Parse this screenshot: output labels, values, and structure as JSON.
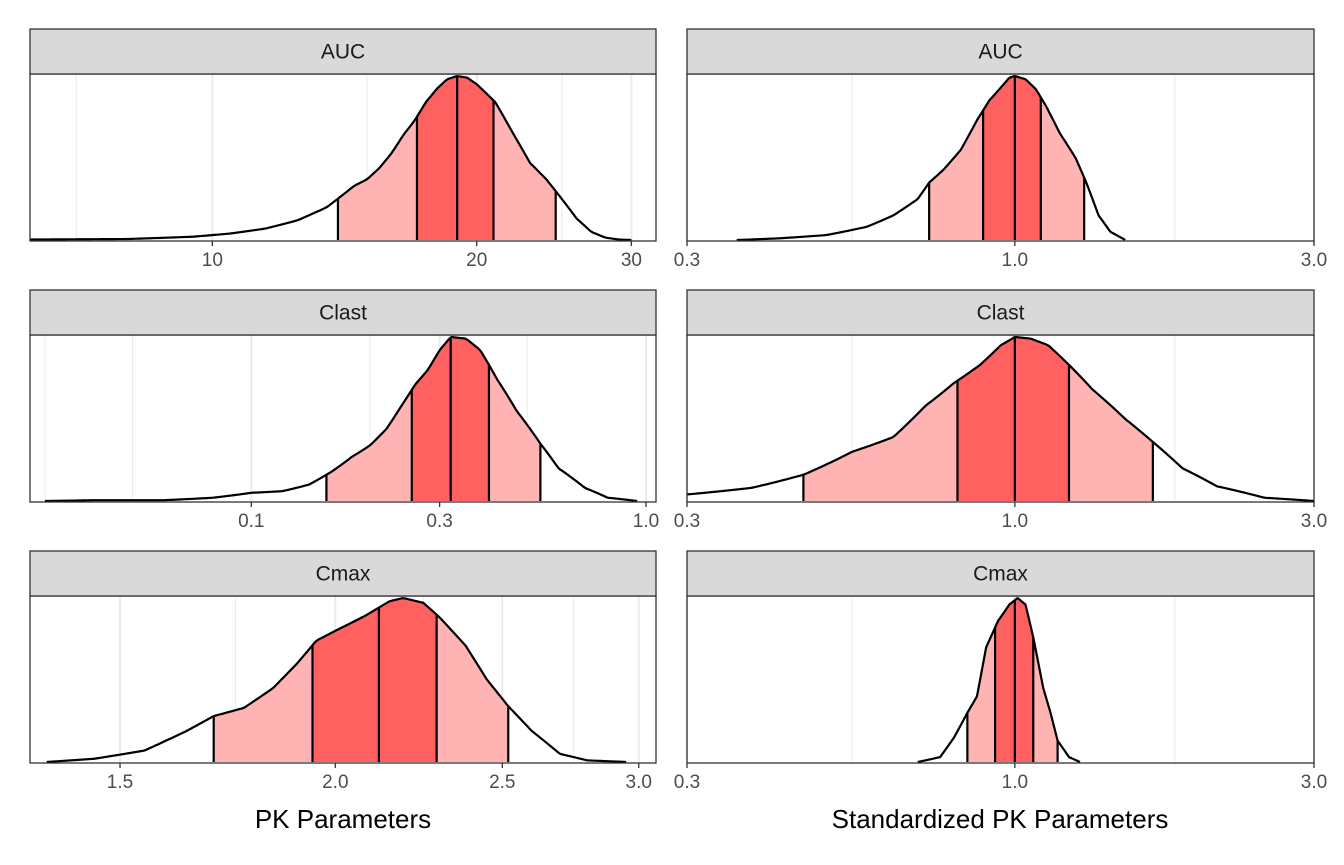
{
  "chart_data": {
    "type": "area",
    "description_style": "ridge density with central interval bands (light = 90%, mid = 50%, dark line = median)",
    "colors": {
      "outer_band": "#ffb3b3",
      "inner_band": "#ff6060",
      "strip_fill": "#d9d9d9",
      "grid": "#ebebeb",
      "line": "#000000"
    },
    "xlabels": {
      "left": "PK Parameters",
      "right": "Standardized PK Parameters"
    },
    "panels": [
      {
        "column": "left",
        "strip": "AUC",
        "scale": "log",
        "xlim": [
          6.2,
          32
        ],
        "ticks": [
          10,
          20,
          30
        ],
        "tick_labels": [
          "10",
          "20",
          "30"
        ],
        "minor_grid": [
          7,
          15,
          25
        ],
        "bands": [
          13.9,
          17.1,
          19.0,
          20.9,
          24.6
        ],
        "density": [
          [
            6.2,
            0.003
          ],
          [
            8,
            0.006
          ],
          [
            9.5,
            0.02
          ],
          [
            10.5,
            0.04
          ],
          [
            11.5,
            0.07
          ],
          [
            12.5,
            0.12
          ],
          [
            13.5,
            0.2
          ],
          [
            14.5,
            0.33
          ],
          [
            15,
            0.37
          ],
          [
            15.5,
            0.44
          ],
          [
            16,
            0.53
          ],
          [
            16.5,
            0.64
          ],
          [
            17,
            0.73
          ],
          [
            17.5,
            0.84
          ],
          [
            18,
            0.92
          ],
          [
            18.5,
            0.98
          ],
          [
            19,
            1.0
          ],
          [
            19.5,
            0.99
          ],
          [
            20,
            0.95
          ],
          [
            21,
            0.84
          ],
          [
            22,
            0.65
          ],
          [
            23,
            0.47
          ],
          [
            24,
            0.37
          ],
          [
            25,
            0.25
          ],
          [
            26,
            0.13
          ],
          [
            27,
            0.05
          ],
          [
            28,
            0.015
          ],
          [
            29,
            0.003
          ],
          [
            30,
            0.0
          ]
        ]
      },
      {
        "column": "right",
        "strip": "AUC",
        "scale": "log",
        "xlim": [
          0.3,
          3.0
        ],
        "ticks": [
          0.3,
          1.0,
          3.0
        ],
        "tick_labels": [
          "0.3",
          "1.0",
          "3.0"
        ],
        "minor_grid": [
          0.55,
          1.8
        ],
        "bands": [
          0.73,
          0.89,
          1.0,
          1.1,
          1.29
        ],
        "density": [
          [
            0.36,
            0.0
          ],
          [
            0.42,
            0.01
          ],
          [
            0.5,
            0.03
          ],
          [
            0.58,
            0.08
          ],
          [
            0.64,
            0.15
          ],
          [
            0.7,
            0.25
          ],
          [
            0.73,
            0.35
          ],
          [
            0.77,
            0.43
          ],
          [
            0.82,
            0.55
          ],
          [
            0.87,
            0.73
          ],
          [
            0.91,
            0.85
          ],
          [
            0.95,
            0.93
          ],
          [
            0.98,
            0.99
          ],
          [
            1.0,
            1.0
          ],
          [
            1.04,
            0.98
          ],
          [
            1.08,
            0.92
          ],
          [
            1.12,
            0.82
          ],
          [
            1.18,
            0.65
          ],
          [
            1.25,
            0.5
          ],
          [
            1.3,
            0.35
          ],
          [
            1.36,
            0.15
          ],
          [
            1.42,
            0.05
          ],
          [
            1.5,
            0.0
          ]
        ]
      },
      {
        "column": "left",
        "strip": "Clast",
        "scale": "log",
        "xlim": [
          0.0275,
          1.06
        ],
        "ticks": [
          0.1,
          0.3,
          1.0
        ],
        "tick_labels": [
          "0.1",
          "0.3",
          "1.0"
        ],
        "minor_grid": [
          0.03,
          0.05,
          0.2,
          0.5
        ],
        "bands": [
          0.155,
          0.255,
          0.32,
          0.4,
          0.54
        ],
        "density": [
          [
            0.03,
            0.0
          ],
          [
            0.04,
            0.005
          ],
          [
            0.06,
            0.005
          ],
          [
            0.08,
            0.02
          ],
          [
            0.1,
            0.05
          ],
          [
            0.12,
            0.06
          ],
          [
            0.14,
            0.1
          ],
          [
            0.16,
            0.18
          ],
          [
            0.18,
            0.27
          ],
          [
            0.2,
            0.34
          ],
          [
            0.22,
            0.44
          ],
          [
            0.24,
            0.58
          ],
          [
            0.26,
            0.71
          ],
          [
            0.28,
            0.8
          ],
          [
            0.3,
            0.92
          ],
          [
            0.32,
            1.0
          ],
          [
            0.35,
            0.99
          ],
          [
            0.38,
            0.92
          ],
          [
            0.42,
            0.74
          ],
          [
            0.47,
            0.55
          ],
          [
            0.54,
            0.35
          ],
          [
            0.6,
            0.2
          ],
          [
            0.7,
            0.08
          ],
          [
            0.8,
            0.02
          ],
          [
            0.95,
            0.0
          ]
        ]
      },
      {
        "column": "right",
        "strip": "Clast",
        "scale": "log",
        "xlim": [
          0.3,
          3.0
        ],
        "ticks": [
          0.3,
          1.0,
          3.0
        ],
        "tick_labels": [
          "0.3",
          "1.0",
          "3.0"
        ],
        "minor_grid": [
          0.55,
          1.8
        ],
        "bands": [
          0.46,
          0.81,
          1.0,
          1.22,
          1.66
        ],
        "density": [
          [
            0.3,
            0.04
          ],
          [
            0.38,
            0.08
          ],
          [
            0.46,
            0.16
          ],
          [
            0.55,
            0.3
          ],
          [
            0.64,
            0.39
          ],
          [
            0.72,
            0.58
          ],
          [
            0.8,
            0.72
          ],
          [
            0.88,
            0.83
          ],
          [
            0.95,
            0.95
          ],
          [
            1.0,
            1.0
          ],
          [
            1.06,
            0.99
          ],
          [
            1.13,
            0.95
          ],
          [
            1.22,
            0.83
          ],
          [
            1.33,
            0.68
          ],
          [
            1.5,
            0.5
          ],
          [
            1.66,
            0.36
          ],
          [
            1.85,
            0.2
          ],
          [
            2.1,
            0.09
          ],
          [
            2.5,
            0.02
          ],
          [
            3.0,
            0.0
          ]
        ]
      },
      {
        "column": "left",
        "strip": "Cmax",
        "scale": "log",
        "xlim": [
          1.33,
          3.07
        ],
        "ticks": [
          1.5,
          2.0,
          2.5,
          3.0
        ],
        "tick_labels": [
          "1.5",
          "2.0",
          "2.5",
          "3.0"
        ],
        "minor_grid": [
          1.75,
          2.25,
          2.75
        ],
        "bands": [
          1.7,
          1.94,
          2.12,
          2.29,
          2.52
        ],
        "density": [
          [
            1.36,
            0.0
          ],
          [
            1.45,
            0.02
          ],
          [
            1.55,
            0.07
          ],
          [
            1.64,
            0.19
          ],
          [
            1.7,
            0.28
          ],
          [
            1.77,
            0.33
          ],
          [
            1.84,
            0.45
          ],
          [
            1.9,
            0.6
          ],
          [
            1.95,
            0.74
          ],
          [
            2.0,
            0.8
          ],
          [
            2.08,
            0.89
          ],
          [
            2.15,
            0.98
          ],
          [
            2.19,
            1.0
          ],
          [
            2.25,
            0.97
          ],
          [
            2.3,
            0.88
          ],
          [
            2.38,
            0.71
          ],
          [
            2.45,
            0.5
          ],
          [
            2.52,
            0.34
          ],
          [
            2.6,
            0.19
          ],
          [
            2.7,
            0.05
          ],
          [
            2.8,
            0.01
          ],
          [
            2.95,
            0.0
          ]
        ]
      },
      {
        "column": "right",
        "strip": "Cmax",
        "scale": "log",
        "xlim": [
          0.3,
          3.0
        ],
        "ticks": [
          0.3,
          1.0,
          3.0
        ],
        "tick_labels": [
          "0.3",
          "1.0",
          "3.0"
        ],
        "minor_grid": [
          0.55,
          1.8
        ],
        "bands": [
          0.84,
          0.93,
          1.0,
          1.07,
          1.17
        ],
        "density": [
          [
            0.7,
            0.0
          ],
          [
            0.76,
            0.03
          ],
          [
            0.8,
            0.15
          ],
          [
            0.84,
            0.3
          ],
          [
            0.87,
            0.4
          ],
          [
            0.9,
            0.7
          ],
          [
            0.94,
            0.86
          ],
          [
            0.98,
            0.96
          ],
          [
            1.01,
            1.0
          ],
          [
            1.04,
            0.96
          ],
          [
            1.07,
            0.76
          ],
          [
            1.11,
            0.45
          ],
          [
            1.14,
            0.3
          ],
          [
            1.17,
            0.13
          ],
          [
            1.22,
            0.03
          ],
          [
            1.27,
            0.0
          ]
        ]
      }
    ]
  }
}
